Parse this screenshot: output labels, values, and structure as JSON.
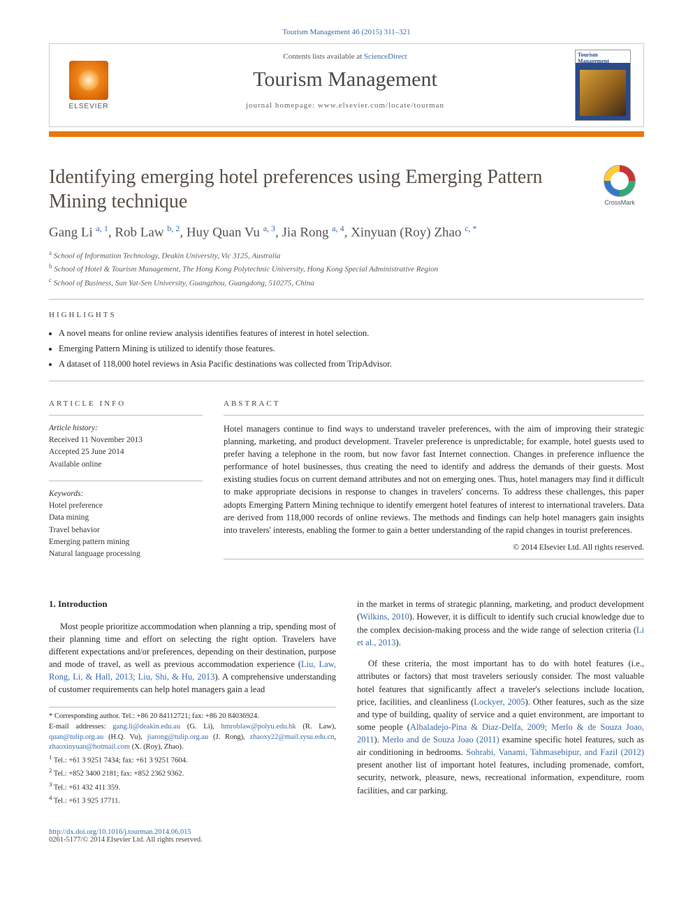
{
  "citation": "Tourism Management 46 (2015) 311–321",
  "header": {
    "contents_prefix": "Contents lists available at ",
    "contents_link": "ScienceDirect",
    "journal": "Tourism Management",
    "homepage_prefix": "journal homepage: ",
    "homepage": "www.elsevier.com/locate/tourman",
    "publisher": "ELSEVIER",
    "cover_title": "Tourism Management"
  },
  "crossmark": "CrossMark",
  "title": "Identifying emerging hotel preferences using Emerging Pattern Mining technique",
  "authors_html": "Gang Li <sup>a, 1</sup>, Rob Law <sup>b, 2</sup>, Huy Quan Vu <sup>a, 3</sup>, Jia Rong <sup>a, 4</sup>, Xinyuan (Roy) Zhao <sup>c, *</sup>",
  "affiliations": [
    {
      "mark": "a",
      "text": "School of Information Technology, Deakin University, Vic 3125, Australia"
    },
    {
      "mark": "b",
      "text": "School of Hotel & Tourism Management, The Hong Kong Polytechnic University, Hong Kong Special Administrative Region"
    },
    {
      "mark": "c",
      "text": "School of Business, Sun Yat-Sen University, Guangzhou, Guangdong, 510275, China"
    }
  ],
  "highlights_heading": "highlights",
  "highlights": [
    "A novel means for online review analysis identifies features of interest in hotel selection.",
    "Emerging Pattern Mining is utilized to identify those features.",
    "A dataset of 118,000 hotel reviews in Asia Pacific destinations was collected from TripAdvisor."
  ],
  "article_info_heading": "article info",
  "history_label": "Article history:",
  "history": [
    "Received 11 November 2013",
    "Accepted 25 June 2014",
    "Available online"
  ],
  "keywords_label": "Keywords:",
  "keywords": [
    "Hotel preference",
    "Data mining",
    "Travel behavior",
    "Emerging pattern mining",
    "Natural language processing"
  ],
  "abstract_heading": "abstract",
  "abstract": "Hotel managers continue to find ways to understand traveler preferences, with the aim of improving their strategic planning, marketing, and product development. Traveler preference is unpredictable; for example, hotel guests used to prefer having a telephone in the room, but now favor fast Internet connection. Changes in preference influence the performance of hotel businesses, thus creating the need to identify and address the demands of their guests. Most existing studies focus on current demand attributes and not on emerging ones. Thus, hotel managers may find it difficult to make appropriate decisions in response to changes in travelers' concerns. To address these challenges, this paper adopts Emerging Pattern Mining technique to identify emergent hotel features of interest to international travelers. Data are derived from 118,000 records of online reviews. The methods and findings can help hotel managers gain insights into travelers' interests, enabling the former to gain a better understanding of the rapid changes in tourist preferences.",
  "copyright": "© 2014 Elsevier Ltd. All rights reserved.",
  "intro_heading": "1. Introduction",
  "intro_para1_a": "Most people prioritize accommodation when planning a trip, spending most of their planning time and effort on selecting the right option. Travelers have different expectations and/or preferences, depending on their destination, purpose and mode of travel, as well as previous accommodation experience (",
  "intro_para1_cite1": "Liu, Law, Rong, Li, & Hall, 2013; Liu, Shi, & Hu, 2013",
  "intro_para1_b": "). A comprehensive understanding of customer requirements can help hotel managers gain a lead",
  "intro_para1_c": "in the market in terms of strategic planning, marketing, and product development (",
  "intro_para1_cite2": "Wilkins, 2010",
  "intro_para1_d": "). However, it is difficult to identify such crucial knowledge due to the complex decision-making process and the wide range of selection criteria (",
  "intro_para1_cite3": "Li et al., 2013",
  "intro_para1_e": ").",
  "intro_para2_a": "Of these criteria, the most important has to do with hotel features (i.e., attributes or factors) that most travelers seriously consider. The most valuable hotel features that significantly affect a traveler's selections include location, price, facilities, and cleanliness (",
  "intro_para2_cite1": "Lockyer, 2005",
  "intro_para2_b": "). Other features, such as the size and type of building, quality of service and a quiet environment, are important to some people (",
  "intro_para2_cite2": "Albaladejo-Pina & Diaz-Delfa, 2009; Merlo & de Souza Joao, 2011",
  "intro_para2_c": "). ",
  "intro_para2_cite3": "Merlo and de Souza Joao (2011)",
  "intro_para2_d": " examine specific hotel features, such as air conditioning in bedrooms. ",
  "intro_para2_cite4": "Sohrabi, Vanami, Tahmasebipur, and Fazil (2012)",
  "intro_para2_e": " present another list of important hotel features, including promenade, comfort, security, network, pleasure, news, recreational information, expenditure, room facilities, and car parking.",
  "footnotes": {
    "corresponding": "* Corresponding author. Tel.: +86 20 84112721; fax: +86 20 84036924.",
    "emails_label": "E-mail addresses: ",
    "emails": "gang.li@deakin.edu.au (G. Li), hmroblaw@polyu.edu.hk (R. Law), quan@tulip.org.au (H.Q. Vu), jiarong@tulip.org.au (J. Rong), zhaoxy22@mail.sysu.edu.cn, zhaoxinyuan@hotmail.com (X. (Roy), Zhao).",
    "n1": "Tel.: +61 3 9251 7434; fax: +61 3 9251 7604.",
    "n2": "Tel.: +852 3400 2181; fax: +852 2362 9362.",
    "n3": "Tel.: +61 432 411 359.",
    "n4": "Tel.: +61 3 925 17711."
  },
  "footer": {
    "doi": "http://dx.doi.org/10.1016/j.tourman.2014.06.015",
    "issn": "0261-5177/© 2014 Elsevier Ltd. All rights reserved."
  },
  "colors": {
    "link": "#3a6aa8",
    "accent": "#e87810",
    "text": "#2a2a2a"
  }
}
